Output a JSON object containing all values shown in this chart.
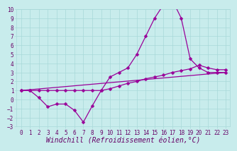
{
  "xlabel": "Windchill (Refroidissement éolien,°C)",
  "background_color": "#c8ecec",
  "grid_color": "#a8d8d8",
  "line_color": "#990099",
  "xlim": [
    -0.5,
    23.5
  ],
  "ylim": [
    -3,
    10
  ],
  "yticks": [
    -3,
    -2,
    -1,
    0,
    1,
    2,
    3,
    4,
    5,
    6,
    7,
    8,
    9,
    10
  ],
  "xticks": [
    0,
    1,
    2,
    3,
    4,
    5,
    6,
    7,
    8,
    9,
    10,
    11,
    12,
    13,
    14,
    15,
    16,
    17,
    18,
    19,
    20,
    21,
    22,
    23
  ],
  "series1_x": [
    0,
    1,
    2,
    3,
    4,
    5,
    6,
    7,
    8,
    9,
    10,
    11,
    12,
    13,
    14,
    15,
    16,
    17,
    18,
    19,
    20,
    21,
    22,
    23
  ],
  "series1_y": [
    1.0,
    1.0,
    0.2,
    -0.8,
    -0.5,
    -0.5,
    -1.2,
    -2.5,
    -0.7,
    1.0,
    2.5,
    3.0,
    3.5,
    5.0,
    7.0,
    9.0,
    10.5,
    11.0,
    9.0,
    4.5,
    3.5,
    3.0,
    3.0,
    3.0
  ],
  "series2_x": [
    0,
    1,
    2,
    3,
    4,
    5,
    6,
    7,
    8,
    9,
    10,
    11,
    12,
    13,
    14,
    15,
    16,
    17,
    18,
    19,
    20,
    21,
    22,
    23
  ],
  "series2_y": [
    1.0,
    1.0,
    1.0,
    1.0,
    1.0,
    1.0,
    1.0,
    1.0,
    1.0,
    1.0,
    1.2,
    1.5,
    1.8,
    2.0,
    2.3,
    2.5,
    2.7,
    3.0,
    3.2,
    3.4,
    3.8,
    3.5,
    3.3,
    3.3
  ],
  "series3_x": [
    0,
    23
  ],
  "series3_y": [
    1.0,
    3.0
  ],
  "fontsize_axis": 7,
  "fontsize_tick": 5.5
}
